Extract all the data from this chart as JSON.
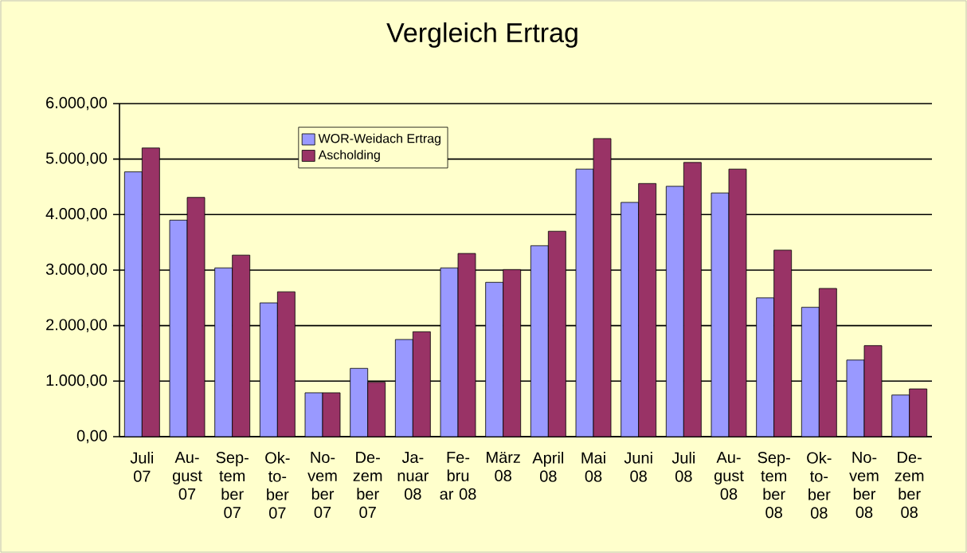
{
  "chart_data": {
    "type": "bar",
    "title": "Vergleich Ertrag",
    "categories": [
      "Juli 07",
      "Au- gust 07",
      "Sep- tem ber 07",
      "Ok- to- ber 07",
      "No- vem ber 07",
      "De- zem ber 07",
      "Ja- nuar 08",
      "Fe- bru ar 08",
      "März 08",
      "April 08",
      "Mai 08",
      "Juni 08",
      "Juli 08",
      "Au- gust 08",
      "Sep- tem ber 08",
      "Ok- to- ber 08",
      "No- vem ber 08",
      "De- zem ber 08"
    ],
    "series": [
      {
        "name": "WOR-Weidach Ertrag",
        "color": "#9999ff",
        "values": [
          4770,
          3900,
          3040,
          2410,
          790,
          1230,
          1750,
          3040,
          2780,
          3440,
          4820,
          4220,
          4510,
          4390,
          2500,
          2330,
          1380,
          750
        ]
      },
      {
        "name": "Ascholding",
        "color": "#993366",
        "values": [
          5200,
          4310,
          3270,
          2610,
          790,
          980,
          1890,
          3300,
          3010,
          3700,
          5370,
          4560,
          4940,
          4820,
          3360,
          2670,
          1640,
          860
        ]
      }
    ],
    "ylim": [
      0,
      6000
    ],
    "yticks": [
      {
        "value": 0,
        "label": "0,00"
      },
      {
        "value": 1000,
        "label": "1.000,00"
      },
      {
        "value": 2000,
        "label": "2.000,00"
      },
      {
        "value": 3000,
        "label": "3.000,00"
      },
      {
        "value": 4000,
        "label": "4.000,00"
      },
      {
        "value": 5000,
        "label": "5.000,00"
      },
      {
        "value": 6000,
        "label": "6.000,00"
      }
    ],
    "grid": "y",
    "legend": "top left"
  }
}
